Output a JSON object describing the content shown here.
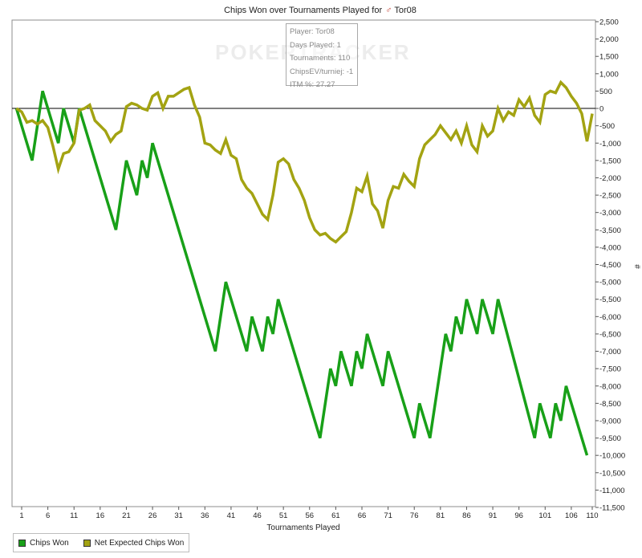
{
  "chart_data": {
    "type": "line",
    "title_prefix": "Chips Won over Tournaments Played for",
    "player_name": "Tor08",
    "xlabel": "Tournaments Played",
    "ylabel": "#",
    "x_ticks": [
      1,
      6,
      11,
      16,
      21,
      26,
      31,
      36,
      41,
      46,
      51,
      56,
      61,
      66,
      71,
      76,
      81,
      86,
      91,
      96,
      101,
      106,
      110
    ],
    "y_ticks": [
      2500,
      2000,
      1500,
      1000,
      500,
      0,
      -500,
      -1000,
      -1500,
      -2000,
      -2500,
      -3000,
      -3500,
      -4000,
      -4500,
      -5000,
      -5500,
      -6000,
      -6500,
      -7000,
      -7500,
      -8000,
      -8500,
      -9000,
      -9500,
      -10000,
      -10500,
      -11000,
      -11500
    ],
    "y_tick_labels": [
      "2,500",
      "2,000",
      "1,500",
      "1,000",
      "500",
      "0",
      "-500",
      "-1,000",
      "-1,500",
      "-2,000",
      "-2,500",
      "-3,000",
      "-3,500",
      "-4,000",
      "-4,500",
      "-5,000",
      "-5,500",
      "-6,000",
      "-6,500",
      "-7,000",
      "-7,500",
      "-8,000",
      "-8,500",
      "-9,000",
      "-9,500",
      "-10,000",
      "-10,500",
      "-11,000",
      "-11,500"
    ],
    "xlim": [
      0,
      111
    ],
    "ylim": [
      -11500,
      2500
    ],
    "grid": false,
    "legend_position": "bottom-left",
    "series": [
      {
        "name": "Chips Won",
        "color": "#18a018",
        "points": [
          [
            0,
            0
          ],
          [
            3,
            -1500
          ],
          [
            5,
            500
          ],
          [
            8,
            -1000
          ],
          [
            9,
            0
          ],
          [
            11,
            -1000
          ],
          [
            12,
            0
          ],
          [
            19,
            -3500
          ],
          [
            21,
            -1500
          ],
          [
            23,
            -2500
          ],
          [
            24,
            -1500
          ],
          [
            25,
            -2000
          ],
          [
            26,
            -1000
          ],
          [
            38,
            -7000
          ],
          [
            40,
            -5000
          ],
          [
            44,
            -7000
          ],
          [
            45,
            -6000
          ],
          [
            47,
            -7000
          ],
          [
            48,
            -6000
          ],
          [
            49,
            -6500
          ],
          [
            50,
            -5500
          ],
          [
            58,
            -9500
          ],
          [
            60,
            -7500
          ],
          [
            61,
            -8000
          ],
          [
            62,
            -7000
          ],
          [
            64,
            -8000
          ],
          [
            65,
            -7000
          ],
          [
            66,
            -7500
          ],
          [
            67,
            -6500
          ],
          [
            70,
            -8000
          ],
          [
            71,
            -7000
          ],
          [
            76,
            -9500
          ],
          [
            77,
            -8500
          ],
          [
            79,
            -9500
          ],
          [
            82,
            -6500
          ],
          [
            83,
            -7000
          ],
          [
            84,
            -6000
          ],
          [
            85,
            -6500
          ],
          [
            86,
            -5500
          ],
          [
            88,
            -6500
          ],
          [
            89,
            -5500
          ],
          [
            91,
            -6500
          ],
          [
            92,
            -5500
          ],
          [
            99,
            -9500
          ],
          [
            100,
            -8500
          ],
          [
            102,
            -9500
          ],
          [
            103,
            -8500
          ],
          [
            104,
            -9000
          ],
          [
            105,
            -8000
          ],
          [
            109,
            -10000
          ]
        ]
      },
      {
        "name": "Net Expected Chips Won",
        "color": "#a3a312",
        "points": [
          [
            0,
            0
          ],
          [
            1,
            -100
          ],
          [
            2,
            -400
          ],
          [
            3,
            -350
          ],
          [
            4,
            -450
          ],
          [
            5,
            -350
          ],
          [
            6,
            -550
          ],
          [
            7,
            -1100
          ],
          [
            8,
            -1750
          ],
          [
            9,
            -1300
          ],
          [
            10,
            -1250
          ],
          [
            11,
            -1000
          ],
          [
            12,
            -50
          ],
          [
            13,
            0
          ],
          [
            14,
            100
          ],
          [
            15,
            -350
          ],
          [
            16,
            -500
          ],
          [
            17,
            -650
          ],
          [
            18,
            -950
          ],
          [
            19,
            -750
          ],
          [
            20,
            -650
          ],
          [
            21,
            50
          ],
          [
            22,
            150
          ],
          [
            23,
            100
          ],
          [
            24,
            0
          ],
          [
            25,
            -50
          ],
          [
            26,
            350
          ],
          [
            27,
            450
          ],
          [
            28,
            0
          ],
          [
            29,
            350
          ],
          [
            30,
            350
          ],
          [
            31,
            450
          ],
          [
            32,
            550
          ],
          [
            33,
            600
          ],
          [
            34,
            100
          ],
          [
            35,
            -250
          ],
          [
            36,
            -1000
          ],
          [
            37,
            -1050
          ],
          [
            38,
            -1200
          ],
          [
            39,
            -1300
          ],
          [
            40,
            -900
          ],
          [
            41,
            -1350
          ],
          [
            42,
            -1450
          ],
          [
            43,
            -2050
          ],
          [
            44,
            -2300
          ],
          [
            45,
            -2450
          ],
          [
            46,
            -2750
          ],
          [
            47,
            -3050
          ],
          [
            48,
            -3200
          ],
          [
            49,
            -2500
          ],
          [
            50,
            -1550
          ],
          [
            51,
            -1450
          ],
          [
            52,
            -1600
          ],
          [
            53,
            -2050
          ],
          [
            54,
            -2300
          ],
          [
            55,
            -2650
          ],
          [
            56,
            -3150
          ],
          [
            57,
            -3500
          ],
          [
            58,
            -3650
          ],
          [
            59,
            -3600
          ],
          [
            60,
            -3750
          ],
          [
            61,
            -3850
          ],
          [
            62,
            -3700
          ],
          [
            63,
            -3550
          ],
          [
            64,
            -3000
          ],
          [
            65,
            -2300
          ],
          [
            66,
            -2400
          ],
          [
            67,
            -1950
          ],
          [
            68,
            -2750
          ],
          [
            69,
            -2950
          ],
          [
            70,
            -3450
          ],
          [
            71,
            -2650
          ],
          [
            72,
            -2250
          ],
          [
            73,
            -2300
          ],
          [
            74,
            -1900
          ],
          [
            75,
            -2100
          ],
          [
            76,
            -2250
          ],
          [
            77,
            -1450
          ],
          [
            78,
            -1050
          ],
          [
            79,
            -900
          ],
          [
            80,
            -750
          ],
          [
            81,
            -500
          ],
          [
            82,
            -700
          ],
          [
            83,
            -900
          ],
          [
            84,
            -650
          ],
          [
            85,
            -1000
          ],
          [
            86,
            -500
          ],
          [
            87,
            -1050
          ],
          [
            88,
            -1250
          ],
          [
            89,
            -500
          ],
          [
            90,
            -800
          ],
          [
            91,
            -650
          ],
          [
            92,
            0
          ],
          [
            93,
            -350
          ],
          [
            94,
            -100
          ],
          [
            95,
            -200
          ],
          [
            96,
            250
          ],
          [
            97,
            50
          ],
          [
            98,
            300
          ],
          [
            99,
            -200
          ],
          [
            100,
            -400
          ],
          [
            101,
            400
          ],
          [
            102,
            500
          ],
          [
            103,
            450
          ],
          [
            104,
            750
          ],
          [
            105,
            600
          ],
          [
            106,
            350
          ],
          [
            107,
            150
          ],
          [
            108,
            -150
          ],
          [
            109,
            -950
          ],
          [
            110,
            -150
          ]
        ]
      }
    ],
    "tooltip": {
      "player": "Player: Tor08",
      "days": "Days Played: 1",
      "tournaments": "Tournaments: 110",
      "chipsev": "ChipsEV/turniej: -1",
      "itm": "ITM %: 27.27"
    },
    "watermark": "POKERTRACKER"
  }
}
